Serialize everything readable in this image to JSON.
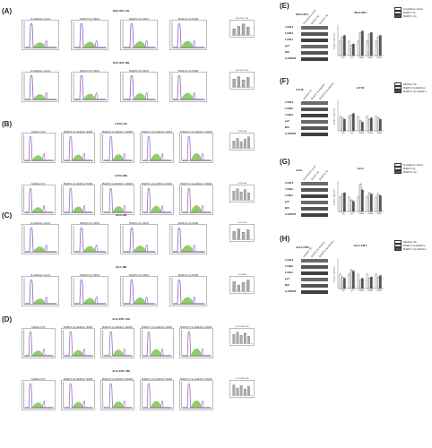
{
  "figure": {
    "panel_labels": [
      "(A)",
      "(B)",
      "(C)",
      "(D)",
      "(E)",
      "(F)",
      "(G)",
      "(H)"
    ],
    "left_panels": [
      {
        "id": "A",
        "rows": [
          {
            "caption": "MGC803-24h",
            "groups": [
              "Scrambled control",
              "BART2-5p 50nM",
              "BART4-5p 50nM",
              "BART11-5p 50nM"
            ],
            "colors": [
              "#9b6fc9",
              "#76c043"
            ]
          },
          {
            "caption": "MGC803-48h",
            "groups": [
              "Scrambled control",
              "BART2-5p 50nM",
              "BART4-5p 50nM",
              "BART11-5p 50nM"
            ],
            "colors": [
              "#9b6fc9",
              "#76c043"
            ]
          }
        ]
      },
      {
        "id": "B",
        "rows": [
          {
            "caption": "GT38-24h",
            "groups": [
              "Inhibitor NC",
              "BART2-5p inhibitor 50nM",
              "BART2-5p inhibitor 100nM",
              "BART11-5p inhibitor 50nM",
              "BART11-5p inhibitor 100nM"
            ],
            "colors": [
              "#9b6fc9",
              "#76c043"
            ]
          },
          {
            "caption": "GT38-48h",
            "groups": [
              "Inhibitor NC",
              "BART2-5p inhibitor 50nM",
              "BART2-5p inhibitor 100nM",
              "BART11-5p inhibitor 50nM",
              "BART11-5p inhibitor 100nM"
            ],
            "colors": [
              "#9b6fc9",
              "#76c043"
            ]
          }
        ]
      },
      {
        "id": "C",
        "rows": [
          {
            "caption": "AGS-24h",
            "groups": [
              "Scrambled control",
              "BART2-5p 50nM",
              "BART4-5p 50nM",
              "BART11-5p 50nM"
            ],
            "colors": [
              "#9b6fc9",
              "#76c043"
            ]
          },
          {
            "caption": "AGS-48h",
            "groups": [
              "Scrambled control",
              "BART2-5p 50nM",
              "BART4-5p 50nM",
              "BART11-5p 50nM"
            ],
            "colors": [
              "#9b6fc9",
              "#76c043"
            ]
          }
        ]
      },
      {
        "id": "D",
        "rows": [
          {
            "caption": "AGS-EBV-24h",
            "groups": [
              "Inhibitor NC",
              "BART2-5p inhibitor 50nM",
              "BART2-5p inhibitor 100nM",
              "BART11-5p inhibitor 50nM",
              "BART11-5p inhibitor 100nM"
            ],
            "colors": [
              "#9b6fc9",
              "#76c043"
            ]
          },
          {
            "caption": "AGS-EBV-48h",
            "groups": [
              "Inhibitor NC",
              "BART2-5p inhibitor 50nM",
              "BART2-5p inhibitor 100nM",
              "BART11-5p inhibitor 50nM",
              "BART11-5p inhibitor 100nM"
            ],
            "colors": [
              "#9b6fc9",
              "#76c043"
            ]
          }
        ]
      }
    ],
    "right_panels": [
      {
        "id": "E",
        "blot_title": "MGC803",
        "chart_title": "MGC803",
        "lanes": [
          "Scrambled control",
          "BART2-5p",
          "BART11-5p"
        ],
        "bands": [
          "CDK4",
          "CDK6",
          "CDK2",
          "p27",
          "RB",
          "GAPDH"
        ],
        "ylabel": "Relative expression",
        "categories": [
          "RB",
          "p27",
          "CDK4",
          "CDK6",
          "CDK2"
        ],
        "legend": [
          "Scrambled control",
          "BART2-5p",
          "BART11-5p"
        ],
        "series_colors": [
          "#ffffff",
          "#d9d9d9",
          "#555555"
        ],
        "values": [
          [
            1.0,
            1.0,
            1.0,
            1.0,
            1.0
          ],
          [
            1.3,
            0.7,
            1.6,
            1.5,
            1.3
          ],
          [
            1.4,
            0.8,
            1.7,
            1.6,
            1.4
          ]
        ]
      },
      {
        "id": "F",
        "blot_title": "GT38",
        "chart_title": "GT38",
        "lanes": [
          "Inhibitor NC",
          "BART2-5p inhibitor",
          "BART11-5p inhibitor"
        ],
        "bands": [
          "CDK4",
          "CDK6",
          "CDK2",
          "p27",
          "RB",
          "GAPDH"
        ],
        "ylabel": "Relative expression",
        "categories": [
          "RB",
          "p27",
          "CDK4",
          "CDK6",
          "CDK2"
        ],
        "legend": [
          "Inhibitor NC",
          "BART2-5p inhibitor",
          "BART11-5p inhibitor"
        ],
        "series_colors": [
          "#ffffff",
          "#d9d9d9",
          "#555555"
        ],
        "values": [
          [
            1.0,
            1.0,
            1.0,
            1.0,
            1.0
          ],
          [
            0.9,
            1.1,
            0.7,
            0.8,
            0.9
          ],
          [
            0.8,
            1.2,
            0.6,
            0.9,
            0.8
          ]
        ]
      },
      {
        "id": "G",
        "blot_title": "AGS",
        "chart_title": "AGS",
        "lanes": [
          "Scrambled control",
          "BART2-5p",
          "BART11-5p"
        ],
        "bands": [
          "CDK4",
          "CDK6",
          "CDK2",
          "p27",
          "RB",
          "GAPDH"
        ],
        "ylabel": "Relative expression",
        "categories": [
          "RB",
          "p27",
          "CDK4",
          "CDK6",
          "CDK2"
        ],
        "legend": [
          "Scrambled control",
          "BART2-5p",
          "BART11-5p"
        ],
        "series_colors": [
          "#ffffff",
          "#d9d9d9",
          "#555555"
        ],
        "values": [
          [
            1.0,
            1.0,
            1.0,
            1.0,
            1.0
          ],
          [
            1.2,
            0.8,
            1.9,
            1.3,
            1.2
          ],
          [
            1.3,
            0.7,
            1.5,
            1.2,
            1.1
          ]
        ]
      },
      {
        "id": "H",
        "blot_title": "AGS-EBV",
        "chart_title": "AGS-EBV",
        "lanes": [
          "Inhibitor NC",
          "BART2-5p inhibitor",
          "BART11-5p inhibitor"
        ],
        "bands": [
          "CDK4",
          "CDK6",
          "CDK2",
          "p27",
          "RB",
          "GAPDH"
        ],
        "ylabel": "Relative expression",
        "categories": [
          "RB",
          "p27",
          "CDK4",
          "CDK6",
          "CDK2"
        ],
        "legend": [
          "Inhibitor NC",
          "BART2-5p inhibitor",
          "BART11-5p inhibitor"
        ],
        "series_colors": [
          "#ffffff",
          "#d9d9d9",
          "#555555"
        ],
        "values": [
          [
            1.0,
            1.0,
            1.0,
            1.0,
            1.0
          ],
          [
            0.8,
            1.3,
            0.6,
            0.7,
            0.8
          ],
          [
            0.7,
            1.2,
            0.7,
            0.8,
            0.9
          ]
        ]
      }
    ]
  },
  "chart_data": [
    {
      "type": "bar",
      "title": "MGC803",
      "ylabel": "Relative expression",
      "categories": [
        "RB",
        "p27",
        "CDK4",
        "CDK6",
        "CDK2"
      ],
      "series": [
        {
          "name": "Scrambled control",
          "values": [
            1.0,
            1.0,
            1.0,
            1.0,
            1.0
          ]
        },
        {
          "name": "BART2-5p",
          "values": [
            1.3,
            0.7,
            1.6,
            1.5,
            1.3
          ]
        },
        {
          "name": "BART11-5p",
          "values": [
            1.4,
            0.8,
            1.7,
            1.6,
            1.4
          ]
        }
      ],
      "ylim": [
        0,
        2
      ]
    },
    {
      "type": "bar",
      "title": "GT38",
      "ylabel": "Relative expression",
      "categories": [
        "RB",
        "p27",
        "CDK4",
        "CDK6",
        "CDK2"
      ],
      "series": [
        {
          "name": "Inhibitor NC",
          "values": [
            1.0,
            1.0,
            1.0,
            1.0,
            1.0
          ]
        },
        {
          "name": "BART2-5p inhibitor",
          "values": [
            0.9,
            1.1,
            0.7,
            0.8,
            0.9
          ]
        },
        {
          "name": "BART11-5p inhibitor",
          "values": [
            0.8,
            1.2,
            0.6,
            0.9,
            0.8
          ]
        }
      ],
      "ylim": [
        0,
        2
      ]
    },
    {
      "type": "bar",
      "title": "AGS",
      "ylabel": "Relative expression",
      "categories": [
        "RB",
        "p27",
        "CDK4",
        "CDK6",
        "CDK2"
      ],
      "series": [
        {
          "name": "Scrambled control",
          "values": [
            1.0,
            1.0,
            1.0,
            1.0,
            1.0
          ]
        },
        {
          "name": "BART2-5p",
          "values": [
            1.2,
            0.8,
            1.9,
            1.3,
            1.2
          ]
        },
        {
          "name": "BART11-5p",
          "values": [
            1.3,
            0.7,
            1.5,
            1.2,
            1.1
          ]
        }
      ],
      "ylim": [
        0,
        2
      ]
    },
    {
      "type": "bar",
      "title": "AGS-EBV",
      "ylabel": "Relative expression",
      "categories": [
        "RB",
        "p27",
        "CDK4",
        "CDK6",
        "CDK2"
      ],
      "series": [
        {
          "name": "Inhibitor NC",
          "values": [
            1.0,
            1.0,
            1.0,
            1.0,
            1.0
          ]
        },
        {
          "name": "BART2-5p inhibitor",
          "values": [
            0.8,
            1.3,
            0.6,
            0.7,
            0.8
          ]
        },
        {
          "name": "BART11-5p inhibitor",
          "values": [
            0.7,
            1.2,
            0.7,
            0.8,
            0.9
          ]
        }
      ],
      "ylim": [
        0,
        2
      ]
    }
  ]
}
